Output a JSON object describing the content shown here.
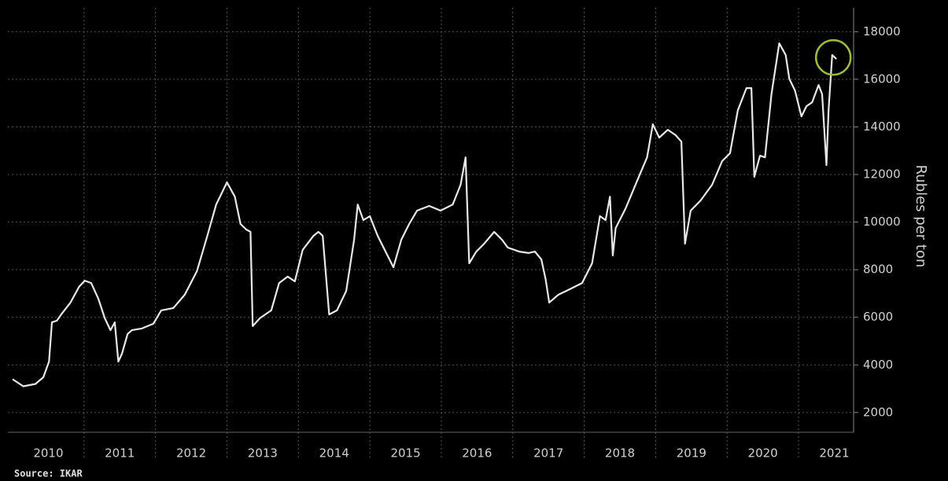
{
  "chart_data": {
    "type": "line",
    "y_label": "Rubles per ton",
    "source": "Source: IKAR",
    "x": [
      2010.0,
      2010.15,
      2010.32,
      2010.43,
      2010.51,
      2010.55,
      2010.62,
      2010.68,
      2010.81,
      2010.93,
      2011.01,
      2011.1,
      2011.2,
      2011.29,
      2011.37,
      2011.43,
      2011.48,
      2011.53,
      2011.61,
      2011.67,
      2011.81,
      2011.97,
      2012.08,
      2012.25,
      2012.41,
      2012.58,
      2012.71,
      2012.85,
      2013.0,
      2013.11,
      2013.19,
      2013.27,
      2013.33,
      2013.36,
      2013.46,
      2013.62,
      2013.73,
      2013.85,
      2013.95,
      2014.06,
      2014.21,
      2014.28,
      2014.34,
      2014.43,
      2014.54,
      2014.67,
      2014.78,
      2014.83,
      2014.91,
      2015.0,
      2015.11,
      2015.22,
      2015.33,
      2015.44,
      2015.55,
      2015.66,
      2015.83,
      2015.99,
      2016.16,
      2016.27,
      2016.34,
      2016.39,
      2016.49,
      2016.6,
      2016.74,
      2016.85,
      2016.93,
      2017.09,
      2017.22,
      2017.31,
      2017.4,
      2017.46,
      2017.51,
      2017.64,
      2017.75,
      2017.97,
      2018.11,
      2018.22,
      2018.3,
      2018.36,
      2018.4,
      2018.44,
      2018.58,
      2018.74,
      2018.88,
      2018.96,
      2019.05,
      2019.17,
      2019.28,
      2019.36,
      2019.41,
      2019.49,
      2019.63,
      2019.79,
      2019.93,
      2020.04,
      2020.15,
      2020.27,
      2020.34,
      2020.38,
      2020.46,
      2020.53,
      2020.62,
      2020.73,
      2020.82,
      2020.87,
      2020.95,
      2021.04,
      2021.11,
      2021.19,
      2021.28,
      2021.33,
      2021.39,
      2021.42,
      2021.47,
      2021.53
    ],
    "series": [
      {
        "color": "#e8e8e8",
        "values": [
          3400,
          3100,
          3200,
          3480,
          4140,
          5790,
          5860,
          6120,
          6620,
          7280,
          7540,
          7440,
          6780,
          5960,
          5460,
          5790,
          4140,
          4470,
          5300,
          5460,
          5530,
          5730,
          6290,
          6390,
          6950,
          7940,
          9260,
          10740,
          11670,
          11070,
          9920,
          9690,
          9590,
          5630,
          5960,
          6290,
          7440,
          7710,
          7510,
          8830,
          9420,
          9590,
          9420,
          6120,
          6290,
          7110,
          9260,
          10740,
          10080,
          10250,
          9420,
          8760,
          8100,
          9260,
          9920,
          10480,
          10680,
          10480,
          10740,
          11570,
          12720,
          8270,
          8760,
          9090,
          9590,
          9260,
          8930,
          8760,
          8700,
          8760,
          8430,
          7610,
          6620,
          6950,
          7110,
          7440,
          8270,
          10250,
          10080,
          11070,
          8600,
          9750,
          10580,
          11730,
          12720,
          14110,
          13550,
          13880,
          13650,
          13380,
          9090,
          10480,
          10910,
          11570,
          12560,
          12890,
          14700,
          15630,
          15630,
          11900,
          12790,
          12720,
          15370,
          17510,
          17020,
          16020,
          15530,
          14440,
          14870,
          15030,
          15760,
          15370,
          12390,
          14700,
          17020,
          16850
        ]
      }
    ],
    "xlim": [
      2010,
      2021.77
    ],
    "xticks": [
      {
        "value": 2010.5,
        "label": "2010"
      },
      {
        "value": 2011.5,
        "label": "2011"
      },
      {
        "value": 2012.5,
        "label": "2012"
      },
      {
        "value": 2013.5,
        "label": "2013"
      },
      {
        "value": 2014.5,
        "label": "2014"
      },
      {
        "value": 2015.5,
        "label": "2015"
      },
      {
        "value": 2016.5,
        "label": "2016"
      },
      {
        "value": 2017.5,
        "label": "2017"
      },
      {
        "value": 2018.5,
        "label": "2018"
      },
      {
        "value": 2019.5,
        "label": "2019"
      },
      {
        "value": 2020.5,
        "label": "2020"
      },
      {
        "value": 2021.5,
        "label": "2021"
      }
    ],
    "ylim": [
      1500,
      19000
    ],
    "yticks": [
      2000,
      4000,
      6000,
      8000,
      10000,
      12000,
      14000,
      16000,
      18000
    ],
    "grid": true
  }
}
